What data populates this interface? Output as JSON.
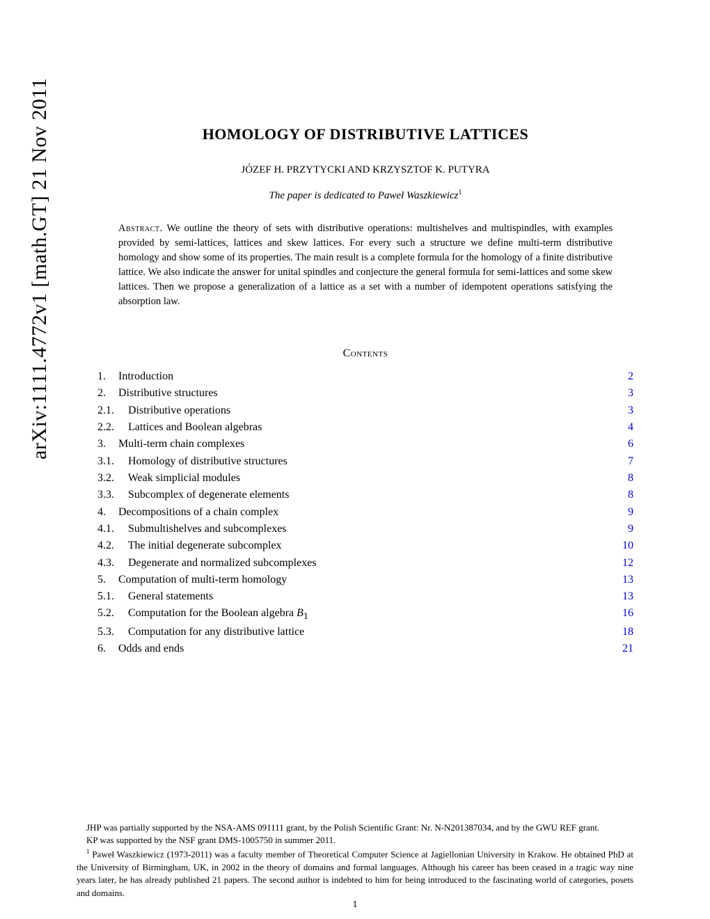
{
  "arxiv_stamp": "arXiv:1111.4772v1  [math.GT]  21 Nov 2011",
  "title": "HOMOLOGY OF DISTRIBUTIVE LATTICES",
  "authors": "JÓZEF H. PRZYTYCKI AND KRZYSZTOF K. PUTYRA",
  "dedication": "The paper is dedicated to Paweł Waszkiewicz",
  "dedication_sup": "1",
  "abstract_label": "Abstract.",
  "abstract": "We outline the theory of sets with distributive operations: multishelves and multispindles, with examples provided by semi-lattices, lattices and skew lattices. For every such a structure we define multi-term distributive homology and show some of its properties. The main result is a complete formula for the homology of a finite distributive lattice. We also indicate the answer for unital spindles and conjecture the general formula for semi-lattices and some skew lattices. Then we propose a generalization of a lattice as a set with a number of idempotent operations satisfying the absorption law.",
  "contents_heading": "Contents",
  "toc": [
    {
      "level": 1,
      "num": "1.",
      "title": "Introduction",
      "page": "2"
    },
    {
      "level": 1,
      "num": "2.",
      "title": "Distributive structures",
      "page": "3"
    },
    {
      "level": 2,
      "num": "2.1.",
      "title": "Distributive operations",
      "page": "3"
    },
    {
      "level": 2,
      "num": "2.2.",
      "title": "Lattices and Boolean algebras",
      "page": "4"
    },
    {
      "level": 1,
      "num": "3.",
      "title": "Multi-term chain complexes",
      "page": "6"
    },
    {
      "level": 2,
      "num": "3.1.",
      "title": "Homology of distributive structures",
      "page": "7"
    },
    {
      "level": 2,
      "num": "3.2.",
      "title": "Weak simplicial modules",
      "page": "8"
    },
    {
      "level": 2,
      "num": "3.3.",
      "title": "Subcomplex of degenerate elements",
      "page": "8"
    },
    {
      "level": 1,
      "num": "4.",
      "title": "Decompositions of a chain complex",
      "page": "9"
    },
    {
      "level": 2,
      "num": "4.1.",
      "title": "Submultishelves and subcomplexes",
      "page": "9"
    },
    {
      "level": 2,
      "num": "4.2.",
      "title": "The initial degenerate subcomplex",
      "page": "10"
    },
    {
      "level": 2,
      "num": "4.3.",
      "title": "Degenerate and normalized subcomplexes",
      "page": "12"
    },
    {
      "level": 1,
      "num": "5.",
      "title": "Computation of multi-term homology",
      "page": "13"
    },
    {
      "level": 2,
      "num": "5.1.",
      "title": "General statements",
      "page": "13"
    },
    {
      "level": 2,
      "num": "5.2.",
      "title_html": "Computation for the Boolean algebra <span class=\"math-it\">B</span><sub>1</sub>",
      "page": "16"
    },
    {
      "level": 2,
      "num": "5.3.",
      "title": "Computation for any distributive lattice",
      "page": "18"
    },
    {
      "level": 1,
      "num": "6.",
      "title": "Odds and ends",
      "page": "21"
    }
  ],
  "footnotes": {
    "f1": "JHP was partially supported by the NSA-AMS 091111 grant, by the Polish Scientific Grant: Nr. N-N201387034, and by the GWU REF grant.",
    "f2": "KP was supported by the NSF grant DMS-1005750 in summer 2011.",
    "f3_sup": "1",
    "f3": " Paweł Waszkiewicz (1973-2011) was a faculty member of Theoretical Computer Science at Jagiellonian University in Krakow. He obtained PhD at the University of Birmingham, UK, in 2002 in the theory of domains and formal languages. Although his career has been ceased in a tragic way nine years later, he has already published 21 papers. The second author is indebted to him for being introduced to the fascinating world of categories, posets and domains."
  },
  "page_number": "1",
  "colors": {
    "link": "#0000cc",
    "text": "#000000",
    "background": "#ffffff"
  },
  "typography": {
    "title_fontsize": 22,
    "body_fontsize": 16,
    "abstract_fontsize": 14.5,
    "footnote_fontsize": 13
  }
}
